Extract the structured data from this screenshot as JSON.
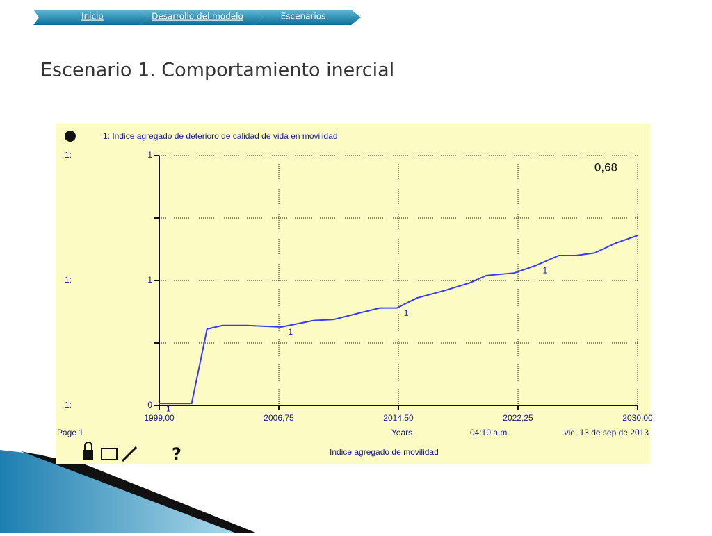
{
  "nav": [
    "Inicio",
    "Desarrollo del modelo",
    "Escenarios"
  ],
  "title": "Escenario 1. Comportamiento inercial",
  "chart_data": {
    "type": "line",
    "x_label": "Years",
    "page_label": "Page 1",
    "time_label": "04:10 a.m.",
    "date_label": "vie, 13 de sep de 2013",
    "footer": "Indice agregado de movilidad",
    "help": "?",
    "annotation": "0,68",
    "axis_series_labels": [
      "1:",
      "1:",
      "1:"
    ],
    "xlim": [
      1999,
      2030
    ],
    "xticks": [
      {
        "value": 1999,
        "label": "1999,00"
      },
      {
        "value": 2006.75,
        "label": "2006,75"
      },
      {
        "value": 2014.5,
        "label": "2014,50"
      },
      {
        "value": 2022.25,
        "label": "2022,25"
      },
      {
        "value": 2030,
        "label": "2030,00"
      }
    ],
    "ylim": [
      0,
      1
    ],
    "yticks": [
      {
        "value": 0,
        "label": "0"
      },
      {
        "value": 0.5,
        "label": "1"
      },
      {
        "value": 1,
        "label": "1"
      }
    ],
    "minor_yticks": [
      0.25,
      0.75
    ],
    "grid": true,
    "x": [
      1999,
      2001.1,
      2002.1,
      2003.1,
      2004.7,
      2005.8,
      2006.9,
      2009,
      2010.3,
      2012.1,
      2013.3,
      2014.4,
      2015.7,
      2017.5,
      2019.1,
      2020.2,
      2022,
      2023.4,
      2024.9,
      2026,
      2027.2,
      2028.6,
      2030
    ],
    "series": [
      {
        "name": "1: Indice agregado de  deterioro de  calidad de vida  en movilidad",
        "marker_label": "1",
        "color": "#3a3aff",
        "values": [
          0.008,
          0.008,
          0.306,
          0.32,
          0.32,
          0.317,
          0.314,
          0.34,
          0.344,
          0.372,
          0.39,
          0.39,
          0.43,
          0.46,
          0.49,
          0.52,
          0.53,
          0.56,
          0.6,
          0.6,
          0.61,
          0.65,
          0.68
        ]
      }
    ]
  }
}
